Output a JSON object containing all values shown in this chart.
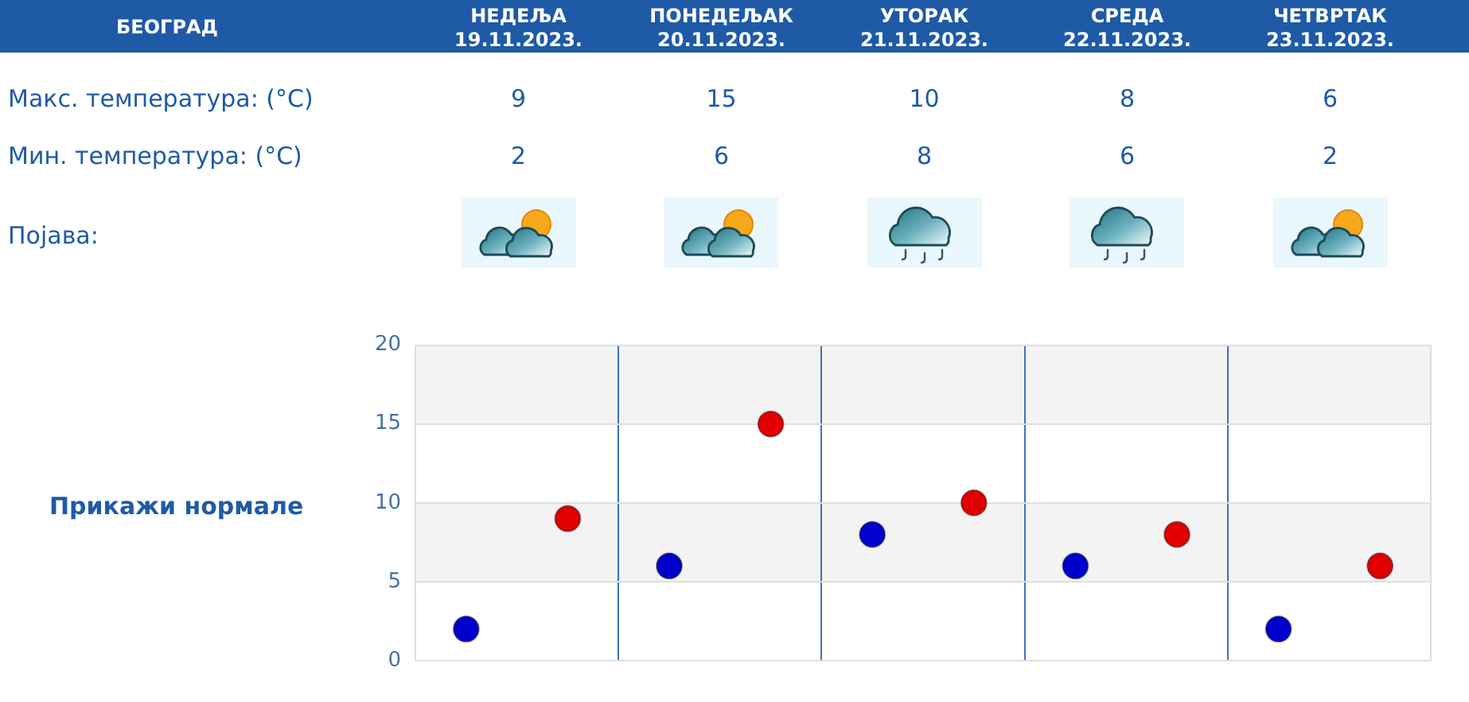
{
  "chart_data": {
    "type": "scatter",
    "title": "БЕОГРАД",
    "categories": [
      null,
      null,
      null,
      null,
      null
    ],
    "series": [
      {
        "color": "#e00000",
        "values": [
          9,
          15,
          10,
          8,
          6
        ]
      },
      {
        "color": "#0000cc",
        "values": [
          2,
          6,
          8,
          6,
          2
        ]
      }
    ],
    "ylim": [
      0,
      20
    ],
    "yticks": [
      0,
      5,
      10,
      15,
      20
    ],
    "tick_labels": "y",
    "grid": true,
    "bands": [
      {
        "axis": "y",
        "from": 5,
        "to": 10,
        "color": "#f3f3f3"
      },
      {
        "axis": "y",
        "from": 15,
        "to": 20,
        "color": "#f3f3f3"
      }
    ],
    "marker": "circle",
    "data_labels": true,
    "annotations": [
      "НЕДЕЉА\n19.11.2023.",
      "ПОНЕДЕЉАК\n20.11.2023.",
      "УТОРАК\n21.11.2023.",
      "СРЕДА\n22.11.2023.",
      "ЧЕТВРТАК\n23.11.2023.",
      "Макс. температура: (°C)",
      "Мин. температура: (°C)",
      "Појава:",
      "Прикажи нормале"
    ]
  }
}
